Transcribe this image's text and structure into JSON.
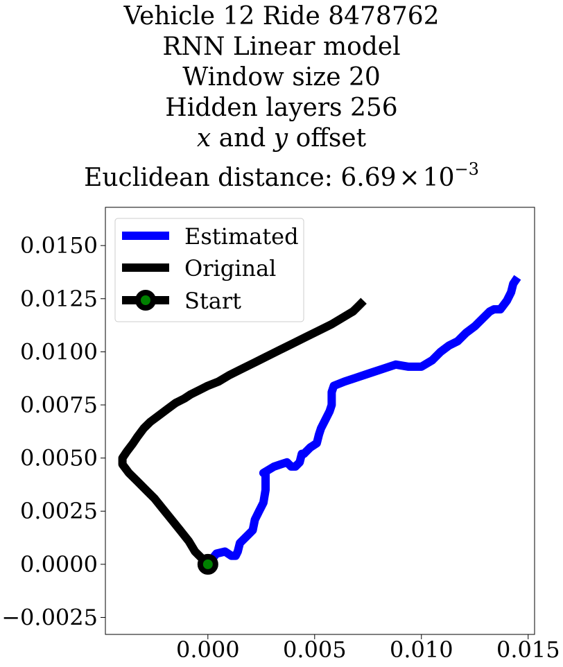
{
  "chart_data": {
    "type": "line",
    "title_lines": [
      "Vehicle 12 Ride 8478762",
      "RNN Linear model",
      "Window size 20",
      "Hidden layers 256"
    ],
    "offset_line": {
      "x": "x",
      "and": " and ",
      "y": "y",
      "rest": " offset"
    },
    "distance_line": {
      "prefix": "Euclidean distance: 6.69",
      "times": "×",
      "base": "10",
      "exponent": "−3"
    },
    "xlim": [
      -0.0048,
      0.0153
    ],
    "ylim": [
      -0.0033,
      0.0168
    ],
    "x_ticks": [
      {
        "value": 0.0,
        "label": "0.000"
      },
      {
        "value": 0.005,
        "label": "0.005"
      },
      {
        "value": 0.01,
        "label": "0.010"
      },
      {
        "value": 0.015,
        "label": "0.015"
      }
    ],
    "y_ticks": [
      {
        "value": -0.0025,
        "label": "−0.0025"
      },
      {
        "value": 0.0,
        "label": "0.0000"
      },
      {
        "value": 0.0025,
        "label": "0.0025"
      },
      {
        "value": 0.005,
        "label": "0.0050"
      },
      {
        "value": 0.0075,
        "label": "0.0075"
      },
      {
        "value": 0.01,
        "label": "0.0100"
      },
      {
        "value": 0.0125,
        "label": "0.0125"
      },
      {
        "value": 0.015,
        "label": "0.0150"
      }
    ],
    "grid": false,
    "legend_position": "top-left",
    "series": [
      {
        "name": "Estimated",
        "color": "#0000ff",
        "x": [
          0.0,
          0.0004,
          0.0008,
          0.0011,
          0.0013,
          0.0014,
          0.0015,
          0.0019,
          0.0021,
          0.0022,
          0.0024,
          0.0026,
          0.0027,
          0.0027,
          0.0027,
          0.0026,
          0.0031,
          0.0034,
          0.0037,
          0.0039,
          0.0041,
          0.0043,
          0.0044,
          0.0045,
          0.0048,
          0.0051,
          0.0052,
          0.0053,
          0.0055,
          0.0057,
          0.0058,
          0.0058,
          0.0058,
          0.0059,
          0.0064,
          0.007,
          0.0076,
          0.0082,
          0.0088,
          0.0094,
          0.01,
          0.0105,
          0.0109,
          0.0113,
          0.0117,
          0.0121,
          0.0125,
          0.0129,
          0.0132,
          0.0134,
          0.0137,
          0.014,
          0.0142,
          0.0143,
          0.0145
        ],
        "y": [
          0.0,
          0.0005,
          0.0006,
          0.0004,
          0.0004,
          0.0006,
          0.001,
          0.0014,
          0.0016,
          0.0021,
          0.0025,
          0.0029,
          0.0035,
          0.004,
          0.0043,
          0.0043,
          0.0046,
          0.0047,
          0.0048,
          0.0046,
          0.0046,
          0.0048,
          0.0052,
          0.0052,
          0.0055,
          0.0057,
          0.0061,
          0.0064,
          0.0068,
          0.0072,
          0.0075,
          0.0078,
          0.0081,
          0.0084,
          0.0086,
          0.0088,
          0.009,
          0.0092,
          0.0094,
          0.0093,
          0.0093,
          0.0096,
          0.01,
          0.0103,
          0.0105,
          0.0109,
          0.0112,
          0.0116,
          0.0119,
          0.012,
          0.012,
          0.0124,
          0.0128,
          0.0132,
          0.0135
        ]
      },
      {
        "name": "Original",
        "color": "#000000",
        "x": [
          0.0,
          -0.0003,
          -0.0006,
          -0.0009,
          -0.0013,
          -0.0017,
          -0.0021,
          -0.0025,
          -0.0029,
          -0.0033,
          -0.0037,
          -0.004,
          -0.004,
          -0.0038,
          -0.0035,
          -0.0033,
          -0.003,
          -0.0027,
          -0.0023,
          -0.0019,
          -0.0015,
          -0.0011,
          -0.0008,
          -0.0004,
          0.0,
          0.0005,
          0.001,
          0.0016,
          0.0022,
          0.0028,
          0.0034,
          0.004,
          0.0046,
          0.0052,
          0.0058,
          0.0063,
          0.0068,
          0.0071,
          0.0073
        ],
        "y": [
          0.0,
          0.0003,
          0.0006,
          0.0011,
          0.0016,
          0.0021,
          0.0026,
          0.0031,
          0.0035,
          0.0039,
          0.0043,
          0.0047,
          0.005,
          0.0053,
          0.0057,
          0.006,
          0.0064,
          0.0067,
          0.007,
          0.0073,
          0.0076,
          0.0078,
          0.008,
          0.0082,
          0.0084,
          0.0086,
          0.0089,
          0.0092,
          0.0095,
          0.0098,
          0.0101,
          0.0104,
          0.0107,
          0.011,
          0.0113,
          0.0116,
          0.0119,
          0.0122,
          0.0124
        ]
      }
    ],
    "start_marker": {
      "name": "Start",
      "x": 0.0,
      "y": 0.0,
      "face_color": "#008000",
      "edge_color": "#000000"
    }
  }
}
